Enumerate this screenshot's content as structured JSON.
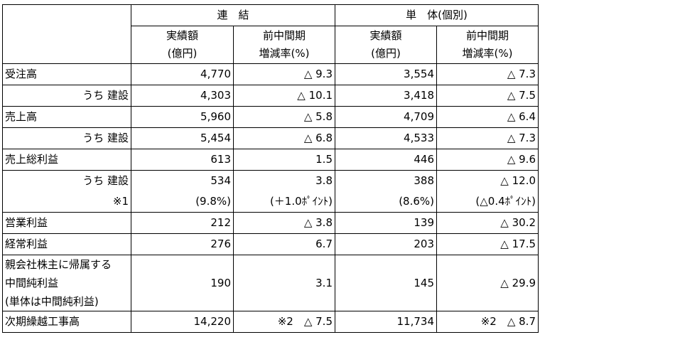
{
  "header": {
    "group1": "連　結",
    "group2": "単　体(個別)",
    "col_amount_l1": "実績額",
    "col_amount_l2": "(億円)",
    "col_change_l1": "前中間期",
    "col_change_l2": "増減率(%)"
  },
  "rows": {
    "orders": {
      "label": "受注高",
      "c1": "4,770",
      "c2": "△ 9.3",
      "c3": "3,554",
      "c4": "△ 7.3"
    },
    "orders_con": {
      "label": "うち 建設",
      "c1": "4,303",
      "c2": "△ 10.1",
      "c3": "3,418",
      "c4": "△ 7.5"
    },
    "sales": {
      "label": "売上高",
      "c1": "5,960",
      "c2": "△ 5.8",
      "c3": "4,709",
      "c4": "△ 6.4"
    },
    "sales_con": {
      "label": "うち 建設",
      "c1": "5,454",
      "c2": "△ 6.8",
      "c3": "4,533",
      "c4": "△ 7.3"
    },
    "gross": {
      "label": "売上総利益",
      "c1": "613",
      "c2": "1.5",
      "c3": "446",
      "c4": "△ 9.6"
    },
    "gross_con": {
      "label": "うち 建設",
      "c1": "534",
      "c2": "3.8",
      "c3": "388",
      "c4": "△ 12.0"
    },
    "gross_note": {
      "label": "※1",
      "c1": "(9.8%)",
      "c2": "(＋1.0ﾎﾟｲﾝﾄ)",
      "c3": "(8.6%)",
      "c4": "(△0.4ﾎﾟｲﾝﾄ)"
    },
    "operating": {
      "label": "営業利益",
      "c1": "212",
      "c2": "△ 3.8",
      "c3": "139",
      "c4": "△ 30.2"
    },
    "ordinary": {
      "label": "経常利益",
      "c1": "276",
      "c2": "6.7",
      "c3": "203",
      "c4": "△ 17.5"
    },
    "net": {
      "label_l1": "親会社株主に帰属する",
      "label_l2": "中間純利益",
      "label_l3": "(単体は中間純利益)",
      "c1": "190",
      "c2": "3.1",
      "c3": "145",
      "c4": "△ 29.9"
    },
    "backlog": {
      "label": "次期繰越工事高",
      "c1": "14,220",
      "c2": "※2　△ 7.5",
      "c3": "11,734",
      "c4": "※2　△ 8.7"
    }
  }
}
